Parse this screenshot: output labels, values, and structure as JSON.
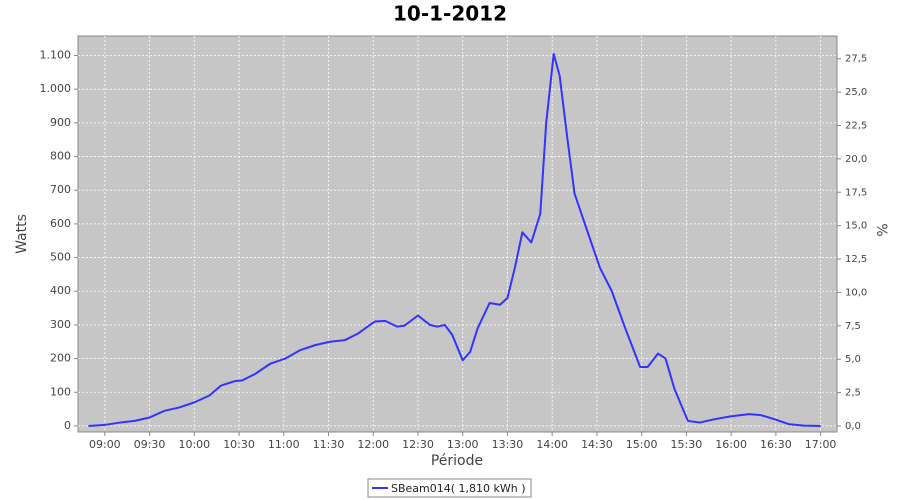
{
  "chart_data": {
    "type": "line",
    "title": "10-1-2012",
    "x_label": "Période",
    "y_label": "Watts",
    "y2_label": "%",
    "x": [
      529,
      540,
      550,
      560,
      570,
      580,
      590,
      600,
      610,
      618,
      627,
      632,
      641,
      651,
      661,
      671,
      681,
      691,
      701,
      710,
      721,
      728,
      736,
      741,
      750,
      758,
      763,
      768,
      773,
      780,
      785,
      790,
      798,
      805,
      810,
      815,
      820,
      826,
      832,
      836,
      841,
      845,
      850,
      855,
      865,
      872,
      880,
      889,
      899,
      904,
      911,
      916,
      922,
      931,
      939,
      949,
      959,
      972,
      980,
      989,
      999,
      1009,
      1020
    ],
    "series": [
      {
        "name": "SBeam014( 1,810 kWh )",
        "color": "#3333ff",
        "values": [
          0,
          3,
          10,
          15,
          25,
          45,
          55,
          70,
          90,
          120,
          133,
          135,
          155,
          185,
          200,
          225,
          240,
          250,
          255,
          275,
          310,
          312,
          295,
          298,
          328,
          300,
          295,
          300,
          270,
          195,
          220,
          290,
          365,
          360,
          380,
          470,
          575,
          545,
          630,
          900,
          1105,
          1040,
          860,
          690,
          560,
          470,
          400,
          290,
          175,
          175,
          215,
          200,
          110,
          15,
          10,
          20,
          28,
          35,
          32,
          20,
          5,
          1,
          0
        ]
      }
    ],
    "xlim": [
      522,
      1031
    ],
    "xticks": [
      {
        "value": 540,
        "label": "09:00"
      },
      {
        "value": 570,
        "label": "09:30"
      },
      {
        "value": 600,
        "label": "10:00"
      },
      {
        "value": 630,
        "label": "10:30"
      },
      {
        "value": 660,
        "label": "11:00"
      },
      {
        "value": 690,
        "label": "11:30"
      },
      {
        "value": 720,
        "label": "12:00"
      },
      {
        "value": 750,
        "label": "12:30"
      },
      {
        "value": 780,
        "label": "13:00"
      },
      {
        "value": 810,
        "label": "13:30"
      },
      {
        "value": 840,
        "label": "14:00"
      },
      {
        "value": 870,
        "label": "14:30"
      },
      {
        "value": 900,
        "label": "15:00"
      },
      {
        "value": 930,
        "label": "15:30"
      },
      {
        "value": 960,
        "label": "16:00"
      },
      {
        "value": 990,
        "label": "16:30"
      },
      {
        "value": 1020,
        "label": "17:00"
      }
    ],
    "ylim": [
      -18,
      1158
    ],
    "yticks": [
      0,
      100,
      200,
      300,
      400,
      500,
      600,
      700,
      800,
      900,
      {
        "value": 1000,
        "label": "1.000"
      },
      {
        "value": 1100,
        "label": "1.100"
      }
    ],
    "y2lim": [
      -0.45,
      29.2
    ],
    "y2ticks": [
      {
        "value": 0,
        "label": "0,0"
      },
      {
        "value": 2.5,
        "label": "2,5"
      },
      {
        "value": 5,
        "label": "5,0"
      },
      {
        "value": 7.5,
        "label": "7,5"
      },
      {
        "value": 10,
        "label": "10,0"
      },
      {
        "value": 12.5,
        "label": "12,5"
      },
      {
        "value": 15,
        "label": "15,0"
      },
      {
        "value": 17.5,
        "label": "17,5"
      },
      {
        "value": 20,
        "label": "20,0"
      },
      {
        "value": 22.5,
        "label": "22,5"
      },
      {
        "value": 25,
        "label": "25,0"
      },
      {
        "value": 27.5,
        "label": "27,5"
      }
    ],
    "grid": true,
    "legend": "bottom"
  }
}
